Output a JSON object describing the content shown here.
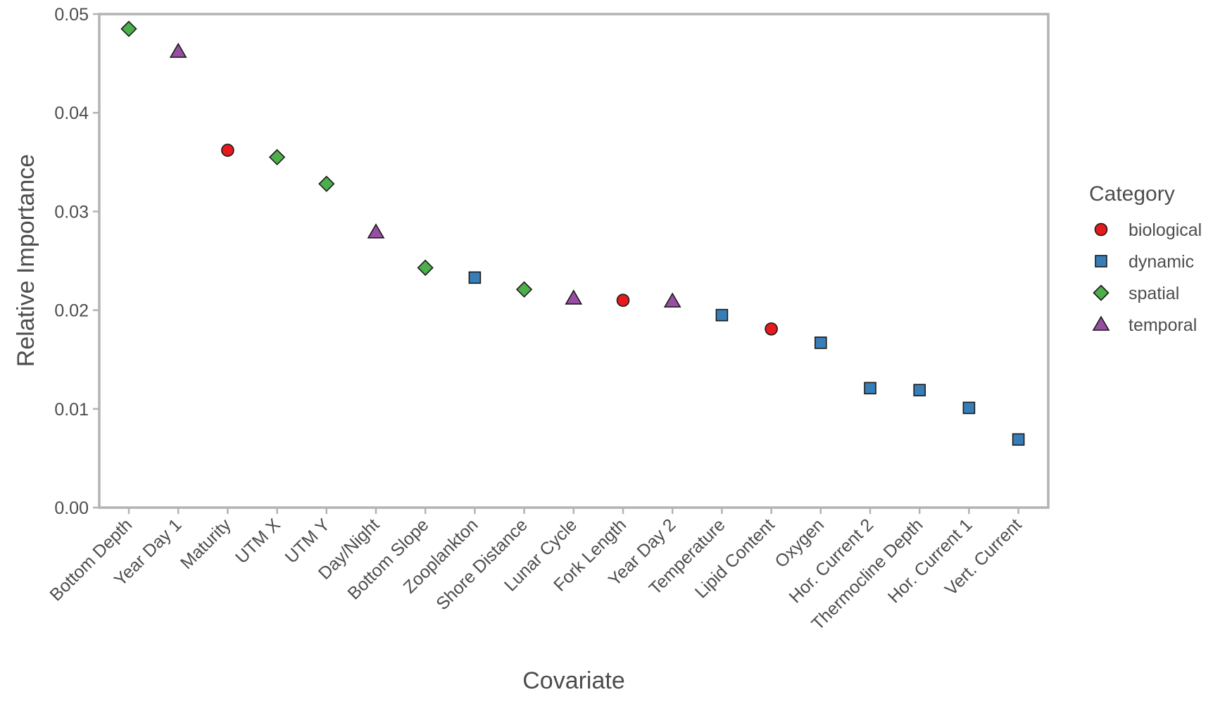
{
  "chart_data": {
    "type": "scatter",
    "xlabel": "Covariate",
    "ylabel": "Relative Importance",
    "ylim": [
      0,
      0.05
    ],
    "yticks": [
      "0.00",
      "0.01",
      "0.02",
      "0.03",
      "0.04",
      "0.05"
    ],
    "ytick_values": [
      0,
      0.01,
      0.02,
      0.03,
      0.04,
      0.05
    ],
    "grid": false,
    "legend": {
      "title": "Category",
      "placement": "right",
      "entries": [
        {
          "name": "biological",
          "shape": "circle",
          "color": "#E41A1C"
        },
        {
          "name": "dynamic",
          "shape": "square",
          "color": "#377EB8"
        },
        {
          "name": "spatial",
          "shape": "diamond",
          "color": "#4DAF4A"
        },
        {
          "name": "temporal",
          "shape": "triangle",
          "color": "#984EA3"
        }
      ]
    },
    "points": [
      {
        "x": "Bottom Depth",
        "y": 0.0485,
        "category": "spatial"
      },
      {
        "x": "Year Day 1",
        "y": 0.0462,
        "category": "temporal"
      },
      {
        "x": "Maturity",
        "y": 0.0362,
        "category": "biological"
      },
      {
        "x": "UTM X",
        "y": 0.0355,
        "category": "spatial"
      },
      {
        "x": "UTM Y",
        "y": 0.0328,
        "category": "spatial"
      },
      {
        "x": "Day/Night",
        "y": 0.0279,
        "category": "temporal"
      },
      {
        "x": "Bottom Slope",
        "y": 0.0243,
        "category": "spatial"
      },
      {
        "x": "Zooplankton",
        "y": 0.0233,
        "category": "dynamic"
      },
      {
        "x": "Shore Distance",
        "y": 0.0221,
        "category": "spatial"
      },
      {
        "x": "Lunar Cycle",
        "y": 0.0212,
        "category": "temporal"
      },
      {
        "x": "Fork Length",
        "y": 0.021,
        "category": "biological"
      },
      {
        "x": "Year Day 2",
        "y": 0.0209,
        "category": "temporal"
      },
      {
        "x": "Temperature",
        "y": 0.0195,
        "category": "dynamic"
      },
      {
        "x": "Lipid Content",
        "y": 0.0181,
        "category": "biological"
      },
      {
        "x": "Oxygen",
        "y": 0.0167,
        "category": "dynamic"
      },
      {
        "x": "Hor. Current 2",
        "y": 0.0121,
        "category": "dynamic"
      },
      {
        "x": "Thermocline Depth",
        "y": 0.0119,
        "category": "dynamic"
      },
      {
        "x": "Hor. Current 1",
        "y": 0.0101,
        "category": "dynamic"
      },
      {
        "x": "Vert. Current",
        "y": 0.0069,
        "category": "dynamic"
      }
    ]
  }
}
